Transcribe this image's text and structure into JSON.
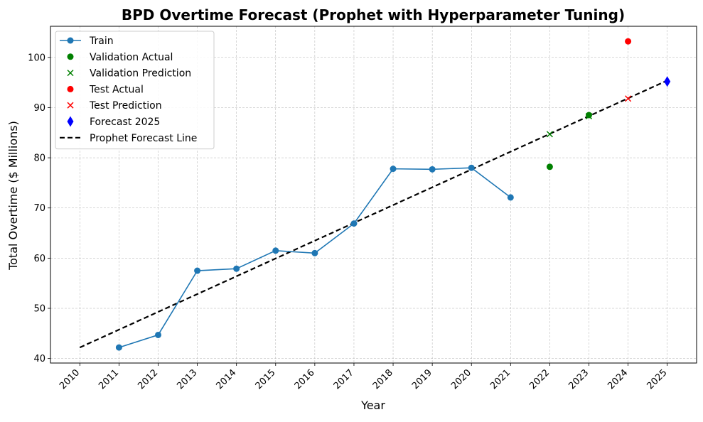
{
  "chart_data": {
    "type": "line",
    "title": "BPD Overtime Forecast (Prophet with Hyperparameter Tuning)",
    "xlabel": "Year",
    "ylabel": "Total Overtime ($ Millions)",
    "xlim": [
      2009.25,
      2025.75
    ],
    "ylim": [
      39.1,
      106.2
    ],
    "x_ticks": [
      "2010",
      "2011",
      "2012",
      "2013",
      "2014",
      "2015",
      "2016",
      "2017",
      "2018",
      "2019",
      "2020",
      "2021",
      "2022",
      "2023",
      "2024",
      "2025"
    ],
    "y_ticks": [
      "40",
      "50",
      "60",
      "70",
      "80",
      "90",
      "100"
    ],
    "grid": true,
    "legend_position": "top-left",
    "series": [
      {
        "name": "Train",
        "marker": "circle",
        "line": "solid",
        "color": "#1f77b4",
        "x": [
          2011,
          2012,
          2013,
          2014,
          2015,
          2016,
          2017,
          2018,
          2019,
          2020,
          2021
        ],
        "y": [
          42.2,
          44.7,
          57.5,
          57.9,
          61.5,
          61.0,
          66.9,
          77.8,
          77.7,
          78.0,
          72.1
        ]
      },
      {
        "name": "Validation Actual",
        "marker": "circle",
        "line": "none",
        "color": "#008000",
        "x": [
          2022,
          2023
        ],
        "y": [
          78.2,
          88.5
        ]
      },
      {
        "name": "Validation Prediction",
        "marker": "x",
        "line": "none",
        "color": "#008000",
        "x": [
          2022,
          2023
        ],
        "y": [
          84.7,
          88.3
        ]
      },
      {
        "name": "Test Actual",
        "marker": "circle",
        "line": "none",
        "color": "#ff0000",
        "x": [
          2024
        ],
        "y": [
          103.2
        ]
      },
      {
        "name": "Test Prediction",
        "marker": "x",
        "line": "none",
        "color": "#ff0000",
        "x": [
          2024
        ],
        "y": [
          91.8
        ]
      },
      {
        "name": "Forecast 2025",
        "marker": "diamond",
        "line": "none",
        "color": "#0000ff",
        "x": [
          2025
        ],
        "y": [
          95.2
        ]
      },
      {
        "name": "Prophet Forecast Line",
        "marker": "none",
        "line": "dashed",
        "color": "#000000",
        "x": [
          2010,
          2025
        ],
        "y": [
          42.2,
          95.4
        ]
      }
    ]
  }
}
